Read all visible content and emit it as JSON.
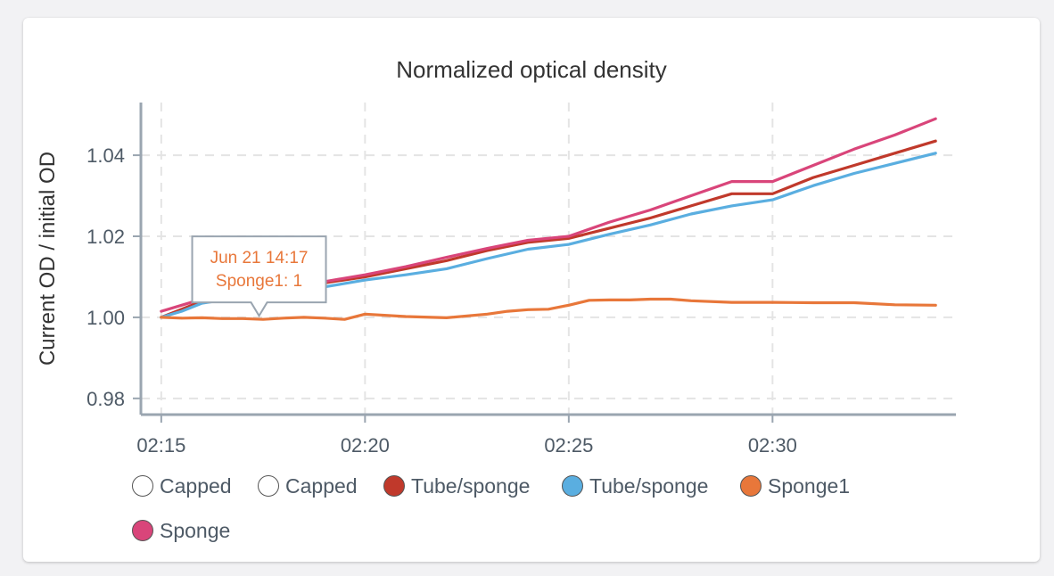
{
  "chart_data": {
    "type": "line",
    "title": "Normalized optical density",
    "xlabel": "",
    "ylabel": "Current OD / initial OD",
    "x_ticks": [
      "02:15",
      "02:20",
      "02:25",
      "02:30"
    ],
    "x_tick_minutes": [
      15,
      20,
      25,
      30
    ],
    "xlim": [
      14.5,
      34.5
    ],
    "y_ticks": [
      "0.98",
      "1.00",
      "1.02",
      "1.04"
    ],
    "y_tick_values": [
      0.98,
      1.0,
      1.02,
      1.04
    ],
    "ylim": [
      0.976,
      1.053
    ],
    "grid": true,
    "legend_position": "bottom",
    "x_units": "minutes past 02:00",
    "series": [
      {
        "name": "Capped",
        "color": "#ffffff",
        "x": [],
        "values": []
      },
      {
        "name": "Capped",
        "color": "#ffffff",
        "x": [],
        "values": []
      },
      {
        "name": "Tube/sponge",
        "color": "#c0392b",
        "x": [
          15,
          15.5,
          16,
          17,
          18,
          19,
          20,
          21,
          22,
          23,
          24,
          25,
          26,
          27,
          28,
          29,
          30,
          31,
          32,
          33,
          34
        ],
        "values": [
          1.0,
          1.002,
          1.004,
          1.0055,
          1.007,
          1.0085,
          1.01,
          1.012,
          1.014,
          1.0165,
          1.0185,
          1.0195,
          1.022,
          1.0245,
          1.0275,
          1.0305,
          1.0305,
          1.0345,
          1.0375,
          1.0405,
          1.0435
        ]
      },
      {
        "name": "Tube/sponge",
        "color": "#5aaee0",
        "x": [
          15,
          15.5,
          16,
          17,
          18,
          19,
          20,
          21,
          22,
          23,
          24,
          25,
          26,
          27,
          28,
          29,
          30,
          31,
          32,
          33,
          34
        ],
        "values": [
          1.0,
          1.0015,
          1.0035,
          1.005,
          1.0065,
          1.0075,
          1.0092,
          1.0105,
          1.012,
          1.0145,
          1.0168,
          1.018,
          1.0205,
          1.0228,
          1.0255,
          1.0275,
          1.029,
          1.0325,
          1.0355,
          1.038,
          1.0405
        ]
      },
      {
        "name": "Sponge1",
        "color": "#e8773a",
        "x": [
          15,
          15.5,
          16,
          16.5,
          17,
          17.5,
          18,
          18.5,
          19,
          19.5,
          20,
          21,
          22,
          23,
          23.5,
          24,
          24.5,
          25,
          25.5,
          26,
          26.5,
          27,
          27.5,
          28,
          29,
          30,
          31,
          32,
          33,
          34
        ],
        "values": [
          1.0,
          0.9998,
          0.9999,
          0.9997,
          0.9997,
          0.9995,
          0.9998,
          1.0,
          0.9998,
          0.9995,
          1.0008,
          1.0002,
          0.9999,
          1.0008,
          1.0015,
          1.0019,
          1.002,
          1.003,
          1.0042,
          1.0043,
          1.0043,
          1.0045,
          1.0045,
          1.0041,
          1.0037,
          1.0037,
          1.0036,
          1.0036,
          1.0031,
          1.003
        ]
      },
      {
        "name": "Sponge",
        "color": "#d9457a",
        "x": [
          15,
          15.5,
          16,
          17,
          18,
          19,
          20,
          21,
          22,
          23,
          24,
          25,
          26,
          27,
          28,
          29,
          30,
          31,
          32,
          33,
          34
        ],
        "values": [
          1.0015,
          1.003,
          1.0045,
          1.006,
          1.0075,
          1.0088,
          1.0105,
          1.0125,
          1.0148,
          1.017,
          1.019,
          1.02,
          1.0235,
          1.0265,
          1.03,
          1.0335,
          1.0335,
          1.0375,
          1.0415,
          1.045,
          1.049
        ]
      }
    ],
    "tooltip": {
      "line1": "Jun 21 14:17",
      "line2": "Sponge1: 1",
      "x": 17.4,
      "y": 0.9995,
      "color": "#e8773a"
    }
  }
}
